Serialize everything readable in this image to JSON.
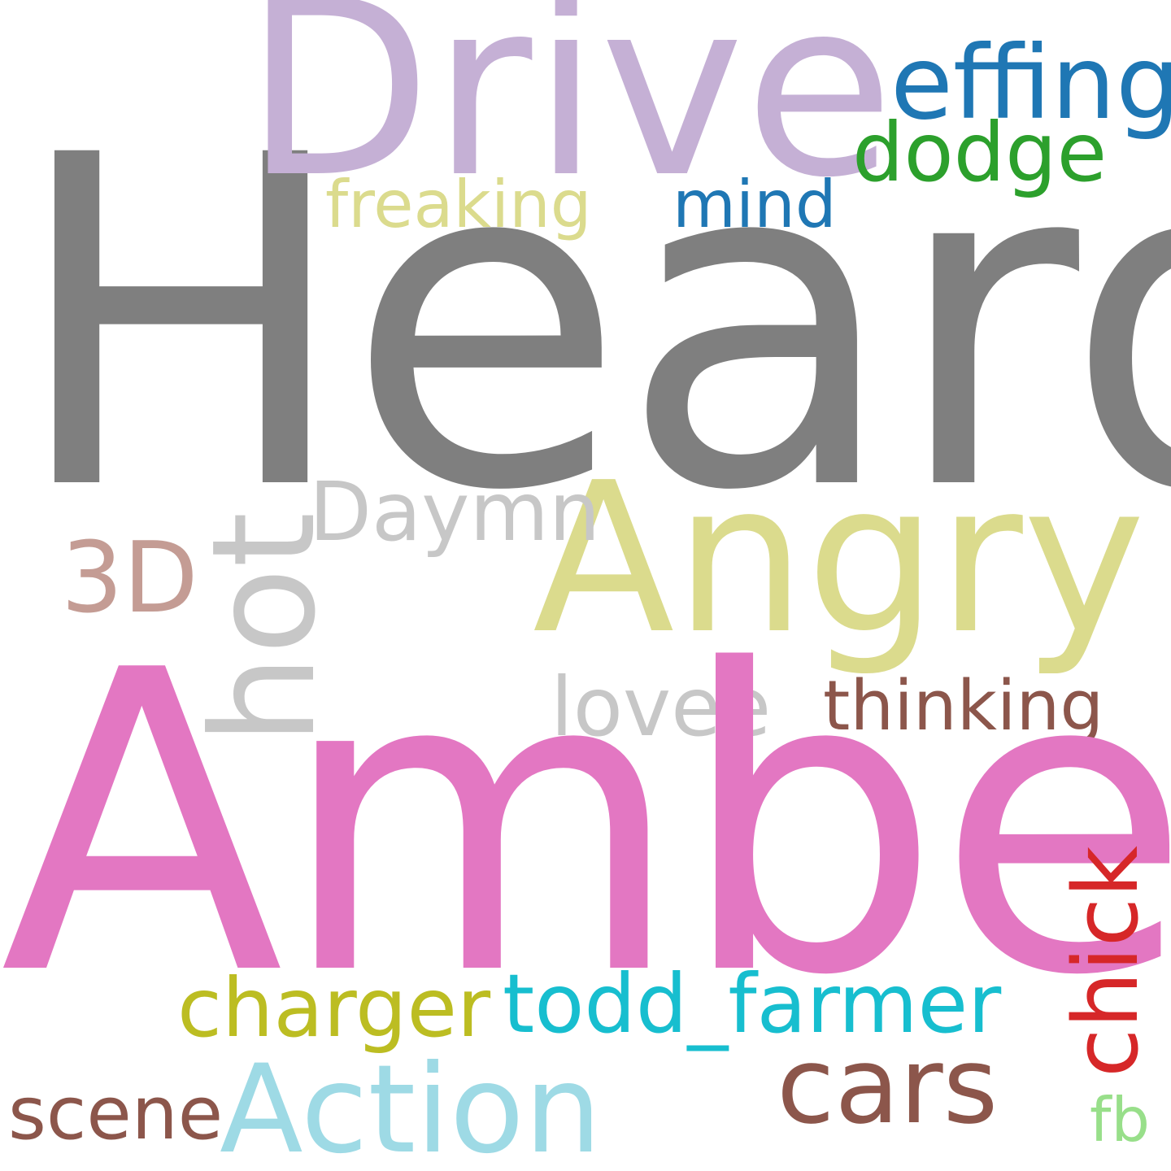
{
  "words": {
    "heard": {
      "text": "Heard",
      "color": "#7f7f7f"
    },
    "drive": {
      "text": "Drive",
      "color": "#c5b0d5"
    },
    "effing": {
      "text": "effing",
      "color": "#1f77b4"
    },
    "dodge": {
      "text": "dodge",
      "color": "#2ca02c"
    },
    "freaking": {
      "text": "freaking",
      "color": "#dbdb8d"
    },
    "mind": {
      "text": "mind",
      "color": "#1f77b4"
    },
    "angry": {
      "text": "Angry",
      "color": "#dbdb8d"
    },
    "daymn": {
      "text": "Daymn",
      "color": "#c7c7c7"
    },
    "three_d": {
      "text": "3D",
      "color": "#c49c94"
    },
    "hot": {
      "text": "hot",
      "color": "#c7c7c7"
    },
    "lovee": {
      "text": "lovee",
      "color": "#c7c7c7"
    },
    "thinking": {
      "text": "thinking",
      "color": "#8c564b"
    },
    "amber": {
      "text": "Amber",
      "color": "#e377c2"
    },
    "chick": {
      "text": "chick",
      "color": "#d62728"
    },
    "charger": {
      "text": "charger",
      "color": "#bcbd22"
    },
    "todd_farmer": {
      "text": "todd_farmer",
      "color": "#17becf"
    },
    "cars": {
      "text": "cars",
      "color": "#8c564b"
    },
    "scene": {
      "text": "scene",
      "color": "#8c564b"
    },
    "action": {
      "text": "Action",
      "color": "#9edae5"
    },
    "fb": {
      "text": "fb",
      "color": "#98df8a"
    }
  }
}
